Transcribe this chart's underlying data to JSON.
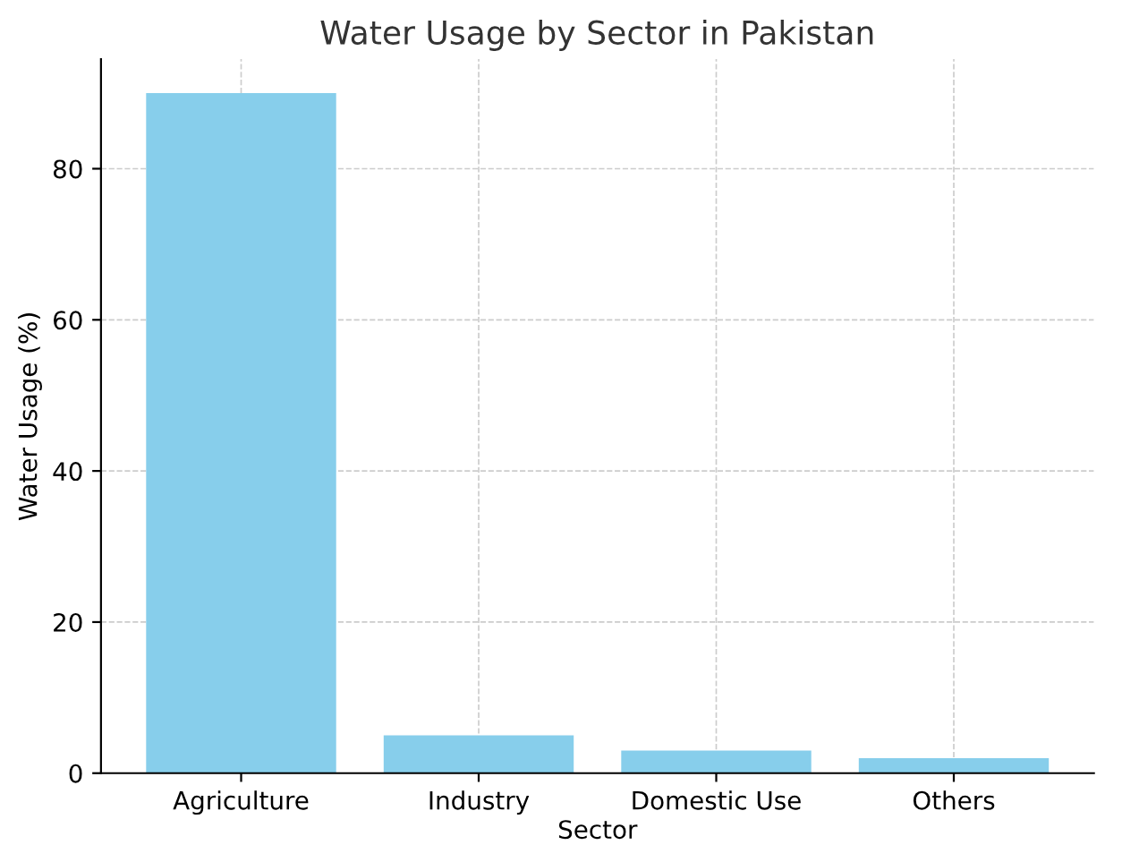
{
  "chart_data": {
    "type": "bar",
    "title": "Water Usage by Sector in Pakistan",
    "xlabel": "Sector",
    "ylabel": "Water Usage (%)",
    "categories": [
      "Agriculture",
      "Industry",
      "Domestic Use",
      "Others"
    ],
    "values": [
      90,
      5,
      3,
      2
    ],
    "color": "#87ceeb",
    "ylim": [
      0,
      94.5
    ],
    "yticks": [
      0,
      20,
      40,
      60,
      80
    ],
    "grid": true
  }
}
